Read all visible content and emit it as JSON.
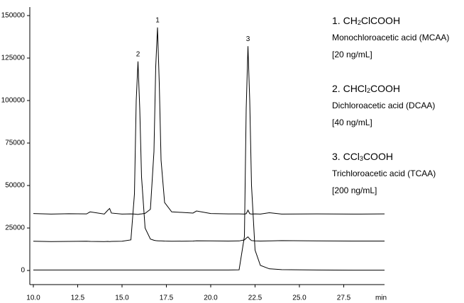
{
  "chart_data": {
    "type": "line",
    "x_label": "min",
    "xlim": [
      9.8,
      29.8
    ],
    "ylim": [
      -8300,
      155000
    ],
    "xticks": [
      {
        "value": 10,
        "label": "10.0"
      },
      12.5,
      {
        "value": 15,
        "label": "15.0"
      },
      17.5,
      {
        "value": 20,
        "label": "20.0"
      },
      22.5,
      {
        "value": 25,
        "label": "25.0"
      },
      27.5
    ],
    "yticks": [
      0,
      25000,
      50000,
      75000,
      100000,
      125000,
      150000
    ],
    "x": [
      10,
      11,
      12,
      13,
      13.2,
      14,
      14.2,
      14.3,
      14.4,
      15,
      15.5,
      15.7,
      15.8,
      15.9,
      16.0,
      16.1,
      16.3,
      16.6,
      16.8,
      16.9,
      17.0,
      17.1,
      17.2,
      17.4,
      17.8,
      19,
      19.2,
      20,
      21,
      21.6,
      21.9,
      22.0,
      22.1,
      22.2,
      22.3,
      22.5,
      22.8,
      23.3,
      24,
      26,
      28,
      29.8
    ],
    "series": [
      {
        "peak_label": "1",
        "color": "#000000",
        "values": [
          33500,
          33200,
          33400,
          33300,
          34500,
          33200,
          35500,
          36500,
          33800,
          33200,
          33300,
          33200,
          33100,
          33000,
          33200,
          33300,
          33600,
          36000,
          70000,
          120000,
          143000,
          110000,
          65000,
          40000,
          34500,
          33800,
          35000,
          33500,
          33300,
          33300,
          33200,
          33400,
          35500,
          33400,
          33200,
          33300,
          33200,
          34000,
          33200,
          33300,
          33200,
          33300
        ]
      },
      {
        "peak_label": "2",
        "color": "#000000",
        "values": [
          17200,
          17000,
          17100,
          17200,
          17100,
          17000,
          17100,
          17000,
          17100,
          17200,
          18000,
          45000,
          100000,
          123000,
          95000,
          55000,
          25000,
          18500,
          17800,
          17600,
          17500,
          17400,
          17400,
          17300,
          17200,
          17300,
          17500,
          17400,
          17300,
          17400,
          18000,
          19000,
          19800,
          18500,
          17600,
          17400,
          17300,
          17400,
          17600,
          17400,
          17300,
          17300
        ]
      },
      {
        "peak_label": "3",
        "color": "#000000",
        "values": [
          300,
          300,
          300,
          300,
          300,
          300,
          300,
          300,
          300,
          300,
          300,
          300,
          300,
          300,
          300,
          300,
          300,
          300,
          300,
          300,
          300,
          300,
          300,
          300,
          300,
          300,
          300,
          300,
          300,
          400,
          20000,
          95000,
          132000,
          100000,
          50000,
          12000,
          3000,
          1000,
          500,
          300,
          200,
          200
        ]
      }
    ],
    "compounds": [
      {
        "number": "1.",
        "formula": [
          "CH",
          "2",
          "ClCOOH"
        ],
        "name": "Monochloroacetic acid (MCAA)",
        "conc": "[20 ng/mL]"
      },
      {
        "number": "2.",
        "formula": [
          "CHCl",
          "2",
          "COOH"
        ],
        "name": "Dichloroacetic acid (DCAA)",
        "conc": "[40 ng/mL]"
      },
      {
        "number": "3.",
        "formula": [
          "CCl",
          "3",
          "COOH"
        ],
        "name": "Trichloroacetic acid (TCAA)",
        "conc": "[200 ng/mL]"
      }
    ]
  }
}
